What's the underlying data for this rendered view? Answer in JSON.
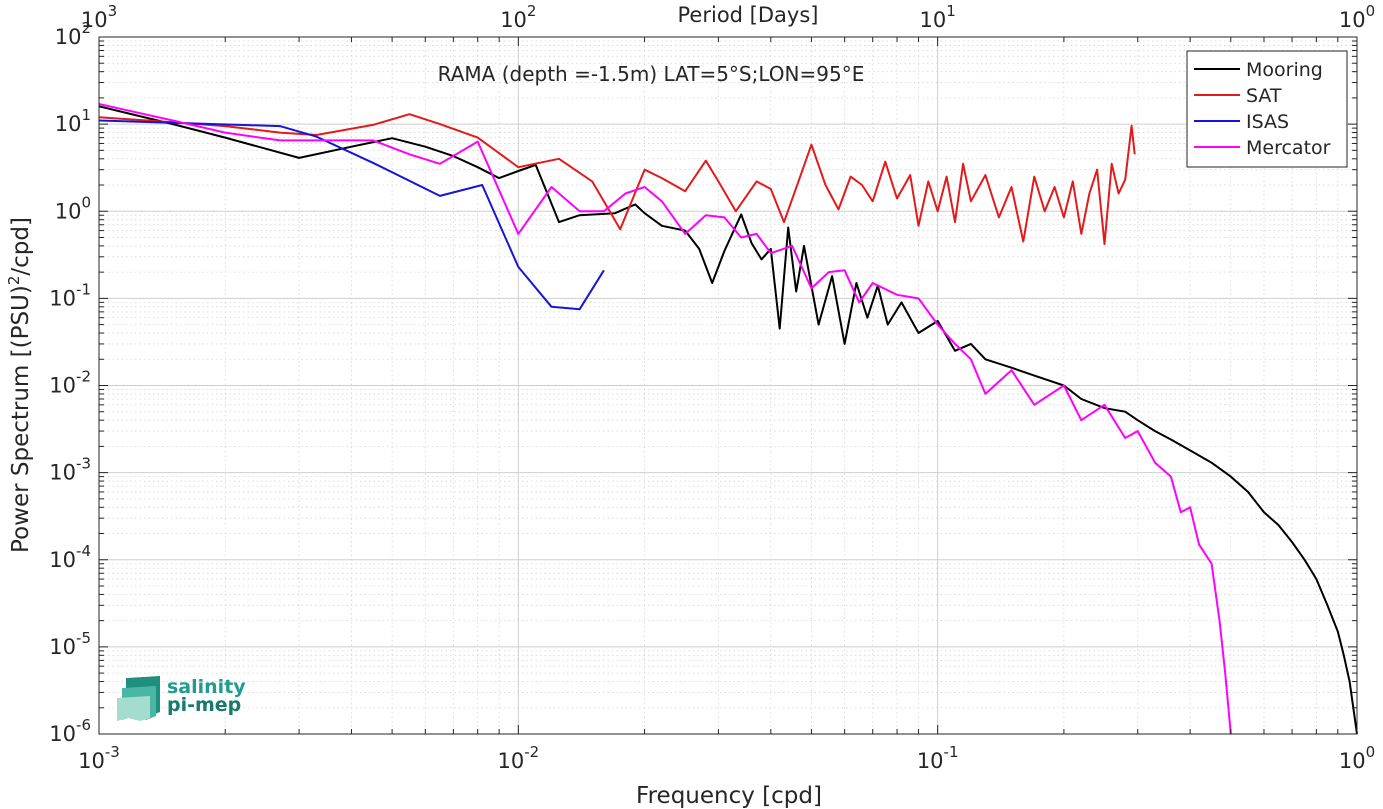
{
  "chart_data": {
    "type": "line",
    "title": "RAMA (depth =-1.5m) LAT=5°S;LON=95°E",
    "xlabel": "Frequency [cpd]",
    "ylabel": "Power Spectrum [(PSU)²/cpd]",
    "ylabel_parts": {
      "prefix": "Power Spectrum [(PSU)",
      "sup": "2",
      "suffix": "/cpd]"
    },
    "top_xlabel": "Period [Days]",
    "xscale": "log",
    "yscale": "log",
    "xlim": [
      0.001,
      1
    ],
    "ylim": [
      1e-06,
      100
    ],
    "grid": true,
    "minor_grid": true,
    "legend_position": "top-right",
    "x_ticks": [
      {
        "value": 0.001,
        "base": "10",
        "exp": "-3"
      },
      {
        "value": 0.01,
        "base": "10",
        "exp": "-2"
      },
      {
        "value": 0.1,
        "base": "10",
        "exp": "-1"
      },
      {
        "value": 1,
        "base": "10",
        "exp": "0"
      }
    ],
    "top_ticks": [
      {
        "value": 0.001,
        "base": "10",
        "exp": "3"
      },
      {
        "value": 0.01,
        "base": "10",
        "exp": "2"
      },
      {
        "value": 0.1,
        "base": "10",
        "exp": "1"
      },
      {
        "value": 1,
        "base": "10",
        "exp": "0"
      }
    ],
    "y_ticks": [
      {
        "value": 100,
        "base": "10",
        "exp": "2"
      },
      {
        "value": 10,
        "base": "10",
        "exp": "1"
      },
      {
        "value": 1,
        "base": "10",
        "exp": "0"
      },
      {
        "value": 0.1,
        "base": "10",
        "exp": "-1"
      },
      {
        "value": 0.01,
        "base": "10",
        "exp": "-2"
      },
      {
        "value": 0.001,
        "base": "10",
        "exp": "-3"
      },
      {
        "value": 0.0001,
        "base": "10",
        "exp": "-4"
      },
      {
        "value": 1e-05,
        "base": "10",
        "exp": "-5"
      },
      {
        "value": 1e-06,
        "base": "10",
        "exp": "-6"
      }
    ],
    "series": [
      {
        "name": "Mooring",
        "color": "#000000",
        "points": [
          [
            0.001,
            16
          ],
          [
            0.0015,
            10
          ],
          [
            0.002,
            7
          ],
          [
            0.003,
            4.1
          ],
          [
            0.004,
            5.5
          ],
          [
            0.005,
            6.9
          ],
          [
            0.006,
            5.5
          ],
          [
            0.007,
            4.3
          ],
          [
            0.008,
            3.2
          ],
          [
            0.009,
            2.4
          ],
          [
            0.01,
            2.9
          ],
          [
            0.011,
            3.4
          ],
          [
            0.0125,
            0.75
          ],
          [
            0.014,
            0.9
          ],
          [
            0.017,
            0.95
          ],
          [
            0.019,
            1.2
          ],
          [
            0.02,
            0.95
          ],
          [
            0.022,
            0.68
          ],
          [
            0.025,
            0.6
          ],
          [
            0.027,
            0.37
          ],
          [
            0.029,
            0.15
          ],
          [
            0.031,
            0.35
          ],
          [
            0.034,
            0.92
          ],
          [
            0.036,
            0.43
          ],
          [
            0.038,
            0.28
          ],
          [
            0.04,
            0.37
          ],
          [
            0.042,
            0.045
          ],
          [
            0.044,
            0.65
          ],
          [
            0.046,
            0.12
          ],
          [
            0.048,
            0.4
          ],
          [
            0.052,
            0.05
          ],
          [
            0.056,
            0.18
          ],
          [
            0.06,
            0.03
          ],
          [
            0.064,
            0.15
          ],
          [
            0.068,
            0.06
          ],
          [
            0.072,
            0.14
          ],
          [
            0.076,
            0.05
          ],
          [
            0.082,
            0.09
          ],
          [
            0.09,
            0.04
          ],
          [
            0.1,
            0.055
          ],
          [
            0.11,
            0.025
          ],
          [
            0.12,
            0.03
          ],
          [
            0.13,
            0.02
          ],
          [
            0.15,
            0.016
          ],
          [
            0.17,
            0.013
          ],
          [
            0.2,
            0.01
          ],
          [
            0.22,
            0.007
          ],
          [
            0.25,
            0.0055
          ],
          [
            0.28,
            0.005
          ],
          [
            0.3,
            0.004
          ],
          [
            0.33,
            0.003
          ],
          [
            0.36,
            0.0024
          ],
          [
            0.4,
            0.0018
          ],
          [
            0.45,
            0.0013
          ],
          [
            0.5,
            0.0009
          ],
          [
            0.55,
            0.0006
          ],
          [
            0.6,
            0.00035
          ],
          [
            0.65,
            0.00025
          ],
          [
            0.7,
            0.00016
          ],
          [
            0.75,
            0.0001
          ],
          [
            0.8,
            6e-05
          ],
          [
            0.85,
            3e-05
          ],
          [
            0.9,
            1.5e-05
          ],
          [
            0.93,
            8e-06
          ],
          [
            0.96,
            4e-06
          ],
          [
            0.98,
            2e-06
          ],
          [
            1.0,
            1e-06
          ]
        ]
      },
      {
        "name": "SAT",
        "color": "#e31a1c",
        "points": [
          [
            0.001,
            12
          ],
          [
            0.0015,
            10.5
          ],
          [
            0.002,
            9.5
          ],
          [
            0.0027,
            8.0
          ],
          [
            0.0033,
            7.5
          ],
          [
            0.0045,
            9.8
          ],
          [
            0.0055,
            13
          ],
          [
            0.0065,
            10
          ],
          [
            0.008,
            7
          ],
          [
            0.01,
            3.2
          ],
          [
            0.0125,
            4
          ],
          [
            0.015,
            2.2
          ],
          [
            0.0175,
            0.62
          ],
          [
            0.02,
            3
          ],
          [
            0.022,
            2.4
          ],
          [
            0.025,
            1.7
          ],
          [
            0.028,
            3.8
          ],
          [
            0.03,
            2.2
          ],
          [
            0.033,
            1.0
          ],
          [
            0.037,
            2.2
          ],
          [
            0.04,
            1.8
          ],
          [
            0.043,
            0.75
          ],
          [
            0.047,
            2.5
          ],
          [
            0.05,
            5.8
          ],
          [
            0.054,
            2.0
          ],
          [
            0.058,
            1.05
          ],
          [
            0.062,
            2.5
          ],
          [
            0.066,
            2.0
          ],
          [
            0.07,
            1.3
          ],
          [
            0.075,
            3.7
          ],
          [
            0.08,
            1.4
          ],
          [
            0.086,
            2.6
          ],
          [
            0.09,
            0.68
          ],
          [
            0.095,
            2.2
          ],
          [
            0.1,
            1.0
          ],
          [
            0.105,
            2.5
          ],
          [
            0.11,
            0.75
          ],
          [
            0.115,
            3.5
          ],
          [
            0.12,
            1.3
          ],
          [
            0.13,
            2.6
          ],
          [
            0.14,
            0.85
          ],
          [
            0.15,
            1.9
          ],
          [
            0.16,
            0.45
          ],
          [
            0.17,
            2.5
          ],
          [
            0.18,
            1.0
          ],
          [
            0.19,
            1.9
          ],
          [
            0.2,
            0.85
          ],
          [
            0.21,
            2.2
          ],
          [
            0.22,
            0.55
          ],
          [
            0.23,
            1.6
          ],
          [
            0.24,
            3.0
          ],
          [
            0.25,
            0.42
          ],
          [
            0.26,
            3.5
          ],
          [
            0.27,
            1.6
          ],
          [
            0.28,
            2.3
          ],
          [
            0.29,
            9.6
          ],
          [
            0.295,
            4.5
          ]
        ]
      },
      {
        "name": "ISAS",
        "color": "#1515d6",
        "points": [
          [
            0.001,
            11
          ],
          [
            0.0027,
            9.5
          ],
          [
            0.0033,
            7.2
          ],
          [
            0.0045,
            3.6
          ],
          [
            0.0065,
            1.5
          ],
          [
            0.0082,
            2.0
          ],
          [
            0.01,
            0.23
          ],
          [
            0.012,
            0.08
          ],
          [
            0.014,
            0.075
          ],
          [
            0.016,
            0.21
          ]
        ]
      },
      {
        "name": "Mercator",
        "color": "#ff00ff",
        "points": [
          [
            0.001,
            17
          ],
          [
            0.0015,
            11
          ],
          [
            0.002,
            8
          ],
          [
            0.0027,
            6.5
          ],
          [
            0.0035,
            6.5
          ],
          [
            0.0045,
            6.5
          ],
          [
            0.0055,
            4.5
          ],
          [
            0.0065,
            3.5
          ],
          [
            0.008,
            6.3
          ],
          [
            0.01,
            0.55
          ],
          [
            0.012,
            1.9
          ],
          [
            0.014,
            1.0
          ],
          [
            0.016,
            1.0
          ],
          [
            0.018,
            1.6
          ],
          [
            0.02,
            1.9
          ],
          [
            0.022,
            1.3
          ],
          [
            0.025,
            0.55
          ],
          [
            0.028,
            0.9
          ],
          [
            0.031,
            0.85
          ],
          [
            0.034,
            0.5
          ],
          [
            0.037,
            0.55
          ],
          [
            0.04,
            0.33
          ],
          [
            0.045,
            0.4
          ],
          [
            0.05,
            0.13
          ],
          [
            0.055,
            0.2
          ],
          [
            0.06,
            0.21
          ],
          [
            0.065,
            0.09
          ],
          [
            0.07,
            0.15
          ],
          [
            0.08,
            0.11
          ],
          [
            0.09,
            0.1
          ],
          [
            0.1,
            0.05
          ],
          [
            0.11,
            0.03
          ],
          [
            0.12,
            0.02
          ],
          [
            0.13,
            0.008
          ],
          [
            0.15,
            0.015
          ],
          [
            0.17,
            0.006
          ],
          [
            0.2,
            0.01
          ],
          [
            0.22,
            0.004
          ],
          [
            0.25,
            0.006
          ],
          [
            0.28,
            0.0025
          ],
          [
            0.3,
            0.003
          ],
          [
            0.33,
            0.0013
          ],
          [
            0.36,
            0.0009
          ],
          [
            0.38,
            0.00035
          ],
          [
            0.4,
            0.0004
          ],
          [
            0.42,
            0.00015
          ],
          [
            0.45,
            9e-05
          ],
          [
            0.47,
            2e-05
          ],
          [
            0.485,
            5e-06
          ],
          [
            0.5,
            1e-06
          ]
        ]
      }
    ]
  },
  "logo": {
    "line1": "salinity",
    "line2": "pi-mep",
    "color": "#1f9c8c"
  }
}
